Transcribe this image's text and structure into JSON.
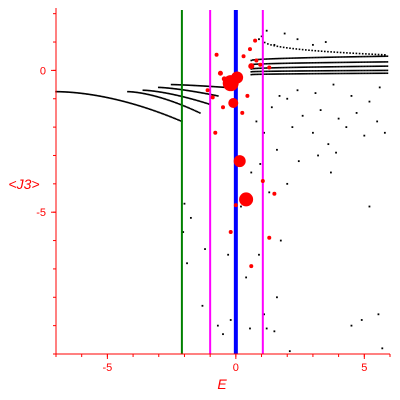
{
  "chart_data": {
    "type": "scatter",
    "xlabel": "E",
    "ylabel": "<J3>",
    "xlim": [
      -7,
      6
    ],
    "ylim": [
      -10,
      2.2
    ],
    "grid": false,
    "xticks": [
      {
        "value": -5,
        "label": "-5"
      },
      {
        "value": 0,
        "label": "0"
      },
      {
        "value": 5,
        "label": "5"
      }
    ],
    "yticks": [
      {
        "value": 0,
        "label": "0"
      },
      {
        "value": -5,
        "label": "-5"
      }
    ],
    "colors": {
      "axis": "#ff0000",
      "black_points": "#000000",
      "red_points": "#ff0000",
      "green_line": "#008000",
      "magenta_line": "#ff00ff",
      "blue_line": "#0000ff"
    },
    "vertical_lines": [
      {
        "x": -2.1,
        "color": "#008000",
        "width": 2
      },
      {
        "x": -1.0,
        "color": "#ff00ff",
        "width": 2
      },
      {
        "x": 0.0,
        "color": "#0000ff",
        "width": 4
      },
      {
        "x": 1.05,
        "color": "#ff00ff",
        "width": 2
      }
    ],
    "black_branches": [
      {
        "x0": -7.0,
        "y0": -0.75,
        "x1": -2.1,
        "y1": -1.8,
        "n": 95,
        "bend": 1.8
      },
      {
        "x0": -4.2,
        "y0": -0.75,
        "x1": -1.4,
        "y1": -1.5,
        "n": 55,
        "bend": 1.6
      },
      {
        "x0": -3.6,
        "y0": -0.7,
        "x1": -1.0,
        "y1": -1.2,
        "n": 50,
        "bend": 1.5
      },
      {
        "x0": -3.0,
        "y0": -0.6,
        "x1": -0.7,
        "y1": -0.9,
        "n": 45,
        "bend": 1.4
      },
      {
        "x0": -2.5,
        "y0": -0.5,
        "x1": -0.4,
        "y1": -0.6,
        "n": 40,
        "bend": 1.3
      },
      {
        "x0": 0.6,
        "y0": 0.35,
        "x1": 5.9,
        "y1": 0.5,
        "n": 90,
        "bend": 0.5
      },
      {
        "x0": 0.6,
        "y0": 0.2,
        "x1": 5.9,
        "y1": 0.3,
        "n": 90,
        "bend": 0.5
      },
      {
        "x0": 0.6,
        "y0": 0.05,
        "x1": 5.9,
        "y1": 0.15,
        "n": 90,
        "bend": 0.5
      },
      {
        "x0": 0.6,
        "y0": -0.05,
        "x1": 5.9,
        "y1": 0.0,
        "n": 90,
        "bend": 0.5
      },
      {
        "x0": 0.6,
        "y0": -0.15,
        "x1": 5.9,
        "y1": -0.1,
        "n": 90,
        "bend": 0.5
      },
      {
        "x0": 1.0,
        "y0": 1.2,
        "x1": 5.8,
        "y1": 0.55,
        "n": 40,
        "bend": 0.3
      }
    ],
    "black_scatter": [
      [
        -2.05,
        -5.7
      ],
      [
        -1.9,
        -6.8
      ],
      [
        -2.0,
        -4.7
      ],
      [
        -1.75,
        -5.2
      ],
      [
        -1.3,
        -8.3
      ],
      [
        -1.2,
        -6.3
      ],
      [
        -0.7,
        -9.0
      ],
      [
        -0.3,
        -6.5
      ],
      [
        -0.2,
        -8.8
      ],
      [
        -0.5,
        -9.3
      ],
      [
        0.2,
        -4.8
      ],
      [
        0.4,
        -7.3
      ],
      [
        0.55,
        -9.1
      ],
      [
        0.9,
        -6.5
      ],
      [
        1.1,
        -8.6
      ],
      [
        1.2,
        -9.1
      ],
      [
        1.3,
        -4.3
      ],
      [
        1.75,
        -6.0
      ],
      [
        1.6,
        -8.0
      ],
      [
        2.0,
        -4.0
      ],
      [
        2.45,
        -3.2
      ],
      [
        3.2,
        -3.0
      ],
      [
        3.7,
        -3.6
      ],
      [
        3.9,
        -2.9
      ],
      [
        4.5,
        -9.0
      ],
      [
        4.9,
        -8.8
      ],
      [
        5.2,
        -4.8
      ],
      [
        5.55,
        -8.6
      ],
      [
        5.7,
        -9.8
      ],
      [
        2.1,
        -9.9
      ],
      [
        1.5,
        -9.2
      ],
      [
        0.6,
        -3.6
      ],
      [
        0.95,
        -3.3
      ],
      [
        1.6,
        -2.8
      ],
      [
        2.2,
        -2.0
      ],
      [
        2.6,
        -1.6
      ],
      [
        3.0,
        -2.2
      ],
      [
        3.3,
        -1.4
      ],
      [
        3.6,
        -2.6
      ],
      [
        4.0,
        -1.7
      ],
      [
        4.3,
        -2.0
      ],
      [
        4.7,
        -1.5
      ],
      [
        5.0,
        -2.3
      ],
      [
        5.2,
        -1.1
      ],
      [
        5.5,
        -1.8
      ],
      [
        5.8,
        -2.2
      ],
      [
        2.0,
        -1.0
      ],
      [
        2.4,
        -0.7
      ],
      [
        3.1,
        -0.8
      ],
      [
        3.8,
        -0.5
      ],
      [
        1.4,
        -1.3
      ],
      [
        1.7,
        -0.9
      ],
      [
        0.8,
        -1.8
      ],
      [
        1.1,
        -2.2
      ],
      [
        4.5,
        -0.9
      ],
      [
        5.6,
        -0.6
      ],
      [
        1.9,
        1.3
      ],
      [
        2.4,
        1.1
      ],
      [
        3.0,
        0.9
      ],
      [
        3.5,
        1.0
      ],
      [
        1.2,
        1.4
      ],
      [
        0.9,
        1.1
      ],
      [
        1.5,
        0.9
      ]
    ],
    "red_points": [
      {
        "x": -0.2,
        "y": -0.45,
        "r": 8
      },
      {
        "x": 0.05,
        "y": -0.25,
        "r": 6
      },
      {
        "x": -0.1,
        "y": -1.15,
        "r": 5
      },
      {
        "x": 0.15,
        "y": -3.2,
        "r": 6
      },
      {
        "x": 0.4,
        "y": -4.55,
        "r": 7
      },
      {
        "x": -0.3,
        "y": -0.6,
        "r": 3
      },
      {
        "x": -0.6,
        "y": -0.1,
        "r": 2.5
      },
      {
        "x": 0.6,
        "y": 0.15,
        "r": 3
      },
      {
        "x": 0.8,
        "y": 0.35,
        "r": 2
      },
      {
        "x": 0.3,
        "y": 0.5,
        "r": 2
      },
      {
        "x": -0.9,
        "y": -0.95,
        "r": 2
      },
      {
        "x": -1.1,
        "y": -0.7,
        "r": 2
      },
      {
        "x": -0.45,
        "y": -0.3,
        "r": 2.5
      },
      {
        "x": 0.45,
        "y": -0.9,
        "r": 2
      },
      {
        "x": -0.8,
        "y": -2.2,
        "r": 2
      },
      {
        "x": 1.05,
        "y": -3.9,
        "r": 2
      },
      {
        "x": 1.5,
        "y": -4.35,
        "r": 2
      },
      {
        "x": 0.0,
        "y": -4.75,
        "r": 2
      },
      {
        "x": -0.2,
        "y": -5.7,
        "r": 2
      },
      {
        "x": 0.6,
        "y": -6.9,
        "r": 2
      },
      {
        "x": 1.3,
        "y": -5.9,
        "r": 2
      },
      {
        "x": -0.75,
        "y": 0.55,
        "r": 2
      },
      {
        "x": 0.55,
        "y": 0.75,
        "r": 2
      },
      {
        "x": 0.95,
        "y": 0.2,
        "r": 2
      },
      {
        "x": 1.3,
        "y": 0.1,
        "r": 2
      },
      {
        "x": -0.5,
        "y": -1.3,
        "r": 2
      },
      {
        "x": 0.25,
        "y": -1.5,
        "r": 2
      },
      {
        "x": 0.75,
        "y": 1.05,
        "r": 2
      }
    ]
  }
}
